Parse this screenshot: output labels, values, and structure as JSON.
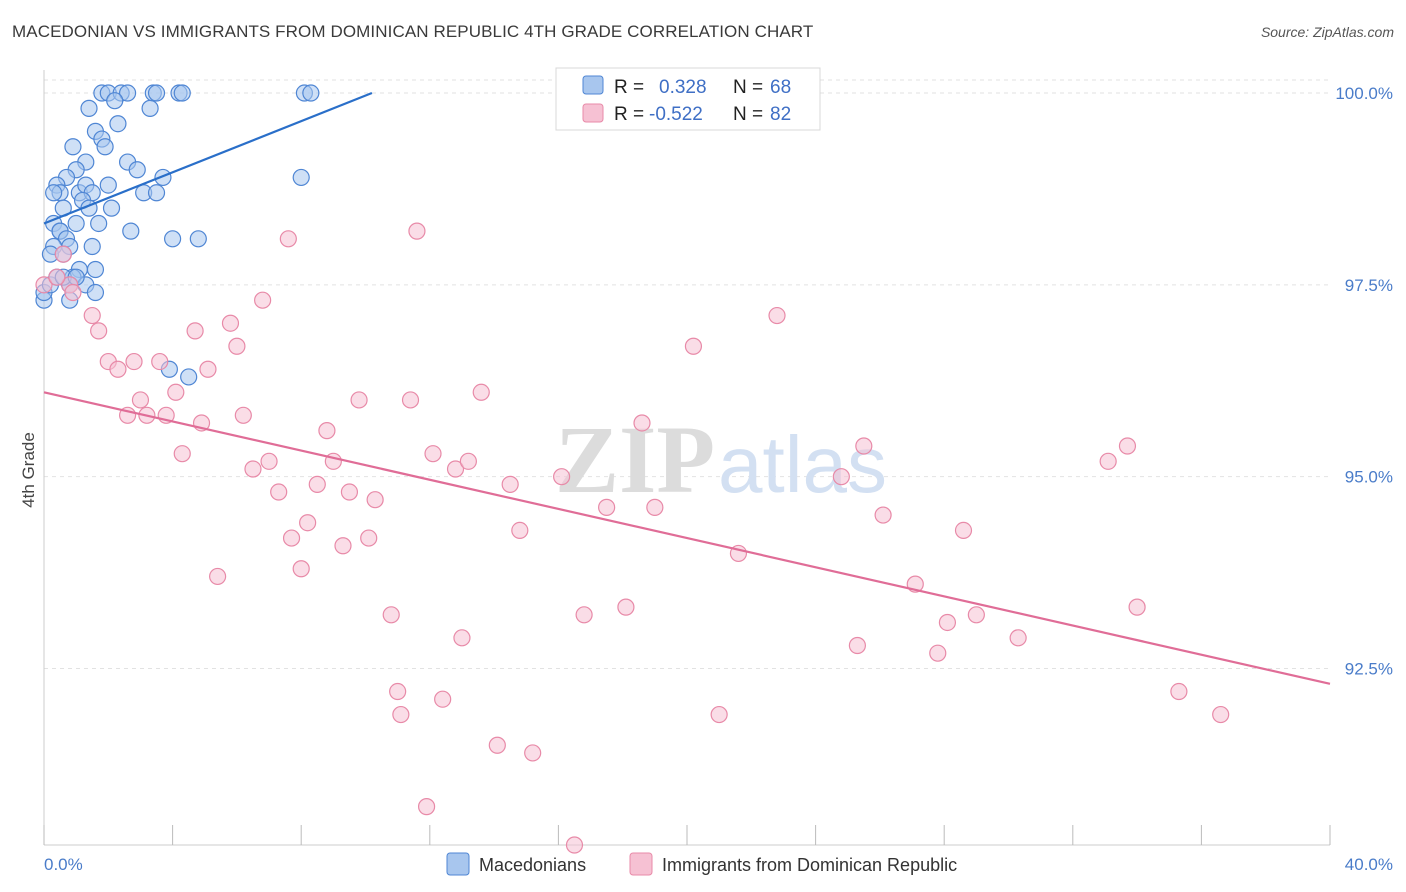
{
  "title": "MACEDONIAN VS IMMIGRANTS FROM DOMINICAN REPUBLIC 4TH GRADE CORRELATION CHART",
  "source": "Source: ZipAtlas.com",
  "watermark": {
    "part1": "ZIP",
    "part2": "atlas"
  },
  "colors": {
    "blue_fill": "#a8c6ee",
    "blue_stroke": "#4f86d4",
    "blue_line": "#2a6fc9",
    "pink_fill": "#f6c1d3",
    "pink_stroke": "#e88aa8",
    "pink_line": "#e06d97",
    "grid": "#e2e2e2",
    "axis_text": "#4a7cc9"
  },
  "legend": {
    "rows": [
      {
        "r_label": "R =",
        "r_value": "0.328",
        "n_label": "N =",
        "n_value": "68"
      },
      {
        "r_label": "R =",
        "r_value": "-0.522",
        "n_label": "N =",
        "n_value": "82"
      }
    ]
  },
  "bottom_legend": [
    "Macedonians",
    "Immigrants from Dominican Republic"
  ],
  "chart_data": {
    "type": "scatter",
    "xlabel": "",
    "ylabel": "4th Grade",
    "xlim": [
      0,
      40
    ],
    "ylim": [
      90.2,
      100.3
    ],
    "x_tick_labels": [
      "0.0%",
      "40.0%"
    ],
    "y_ticks": [
      92.5,
      95.0,
      97.5,
      100.0
    ],
    "y_tick_labels": [
      "92.5%",
      "95.0%",
      "97.5%",
      "100.0%"
    ],
    "grid": true,
    "series": [
      {
        "name": "Macedonians",
        "r": 0.328,
        "n": 68,
        "trend": {
          "x": [
            0.0,
            10.2
          ],
          "y": [
            98.3,
            100.0
          ]
        },
        "points": [
          [
            1.8,
            100.0
          ],
          [
            2.0,
            100.0
          ],
          [
            2.4,
            100.0
          ],
          [
            2.6,
            100.0
          ],
          [
            3.4,
            100.0
          ],
          [
            3.5,
            100.0
          ],
          [
            4.2,
            100.0
          ],
          [
            4.3,
            100.0
          ],
          [
            8.1,
            100.0
          ],
          [
            8.3,
            100.0
          ],
          [
            2.2,
            99.9
          ],
          [
            3.3,
            99.8
          ],
          [
            1.4,
            99.8
          ],
          [
            2.3,
            99.6
          ],
          [
            1.6,
            99.5
          ],
          [
            1.8,
            99.4
          ],
          [
            0.9,
            99.3
          ],
          [
            1.9,
            99.3
          ],
          [
            1.3,
            99.1
          ],
          [
            2.6,
            99.1
          ],
          [
            1.0,
            99.0
          ],
          [
            2.9,
            99.0
          ],
          [
            0.7,
            98.9
          ],
          [
            3.7,
            98.9
          ],
          [
            8.0,
            98.9
          ],
          [
            0.4,
            98.8
          ],
          [
            1.1,
            98.7
          ],
          [
            1.3,
            98.8
          ],
          [
            2.0,
            98.8
          ],
          [
            0.5,
            98.7
          ],
          [
            0.3,
            98.7
          ],
          [
            1.5,
            98.7
          ],
          [
            3.1,
            98.7
          ],
          [
            3.5,
            98.7
          ],
          [
            1.2,
            98.6
          ],
          [
            1.4,
            98.5
          ],
          [
            2.1,
            98.5
          ],
          [
            0.6,
            98.5
          ],
          [
            0.3,
            98.3
          ],
          [
            1.0,
            98.3
          ],
          [
            1.7,
            98.3
          ],
          [
            2.7,
            98.2
          ],
          [
            0.5,
            98.2
          ],
          [
            0.5,
            98.2
          ],
          [
            0.7,
            98.1
          ],
          [
            4.0,
            98.1
          ],
          [
            4.8,
            98.1
          ],
          [
            0.3,
            98.0
          ],
          [
            0.8,
            98.0
          ],
          [
            1.5,
            98.0
          ],
          [
            0.2,
            97.9
          ],
          [
            0.6,
            97.9
          ],
          [
            1.1,
            97.7
          ],
          [
            1.6,
            97.7
          ],
          [
            0.9,
            97.6
          ],
          [
            1.3,
            97.5
          ],
          [
            0.8,
            97.5
          ],
          [
            0.8,
            97.5
          ],
          [
            1.6,
            97.4
          ],
          [
            0.0,
            97.3
          ],
          [
            0.8,
            97.3
          ],
          [
            0.0,
            97.4
          ],
          [
            3.9,
            96.4
          ],
          [
            4.5,
            96.3
          ],
          [
            0.2,
            97.5
          ],
          [
            0.4,
            97.6
          ],
          [
            0.6,
            97.6
          ],
          [
            1.0,
            97.6
          ]
        ]
      },
      {
        "name": "Immigrants from Dominican Republic",
        "r": -0.522,
        "n": 82,
        "trend": {
          "x": [
            0.0,
            40.0
          ],
          "y": [
            96.1,
            92.3
          ]
        },
        "points": [
          [
            0.0,
            97.5
          ],
          [
            0.8,
            97.5
          ],
          [
            0.6,
            97.9
          ],
          [
            0.9,
            97.4
          ],
          [
            1.5,
            97.1
          ],
          [
            1.7,
            96.9
          ],
          [
            2.0,
            96.5
          ],
          [
            2.3,
            96.4
          ],
          [
            2.6,
            95.8
          ],
          [
            2.8,
            96.5
          ],
          [
            3.0,
            96.0
          ],
          [
            3.2,
            95.8
          ],
          [
            3.6,
            96.5
          ],
          [
            3.8,
            95.8
          ],
          [
            4.1,
            96.1
          ],
          [
            4.3,
            95.3
          ],
          [
            4.7,
            96.9
          ],
          [
            4.9,
            95.7
          ],
          [
            5.1,
            96.4
          ],
          [
            5.4,
            93.7
          ],
          [
            5.8,
            97.0
          ],
          [
            6.0,
            96.7
          ],
          [
            6.2,
            95.8
          ],
          [
            6.5,
            95.1
          ],
          [
            6.8,
            97.3
          ],
          [
            7.0,
            95.2
          ],
          [
            7.3,
            94.8
          ],
          [
            7.6,
            98.1
          ],
          [
            7.7,
            94.2
          ],
          [
            8.0,
            93.8
          ],
          [
            8.2,
            94.4
          ],
          [
            8.5,
            94.9
          ],
          [
            8.8,
            95.6
          ],
          [
            9.0,
            95.2
          ],
          [
            9.3,
            94.1
          ],
          [
            9.5,
            94.8
          ],
          [
            9.8,
            96.0
          ],
          [
            10.1,
            94.2
          ],
          [
            10.3,
            94.7
          ],
          [
            10.8,
            93.2
          ],
          [
            11.0,
            92.2
          ],
          [
            11.1,
            91.9
          ],
          [
            11.4,
            96.0
          ],
          [
            11.6,
            98.2
          ],
          [
            11.9,
            90.7
          ],
          [
            12.1,
            95.3
          ],
          [
            12.4,
            92.1
          ],
          [
            12.8,
            95.1
          ],
          [
            13.0,
            92.9
          ],
          [
            13.2,
            95.2
          ],
          [
            13.6,
            96.1
          ],
          [
            14.1,
            91.5
          ],
          [
            14.5,
            94.9
          ],
          [
            14.8,
            94.3
          ],
          [
            15.2,
            91.4
          ],
          [
            16.1,
            95.0
          ],
          [
            16.5,
            90.2
          ],
          [
            16.8,
            93.2
          ],
          [
            17.5,
            94.6
          ],
          [
            18.1,
            93.3
          ],
          [
            18.6,
            95.7
          ],
          [
            19.0,
            94.6
          ],
          [
            20.2,
            96.7
          ],
          [
            21.0,
            91.9
          ],
          [
            21.6,
            94.0
          ],
          [
            22.8,
            97.1
          ],
          [
            24.8,
            95.0
          ],
          [
            25.3,
            92.8
          ],
          [
            25.5,
            95.4
          ],
          [
            26.1,
            94.5
          ],
          [
            27.1,
            93.6
          ],
          [
            27.8,
            92.7
          ],
          [
            28.1,
            93.1
          ],
          [
            28.6,
            94.3
          ],
          [
            29.0,
            93.2
          ],
          [
            30.3,
            92.9
          ],
          [
            33.1,
            95.2
          ],
          [
            33.7,
            95.4
          ],
          [
            34.0,
            93.3
          ],
          [
            35.3,
            92.2
          ],
          [
            36.6,
            91.9
          ],
          [
            0.4,
            97.6
          ]
        ]
      }
    ]
  }
}
